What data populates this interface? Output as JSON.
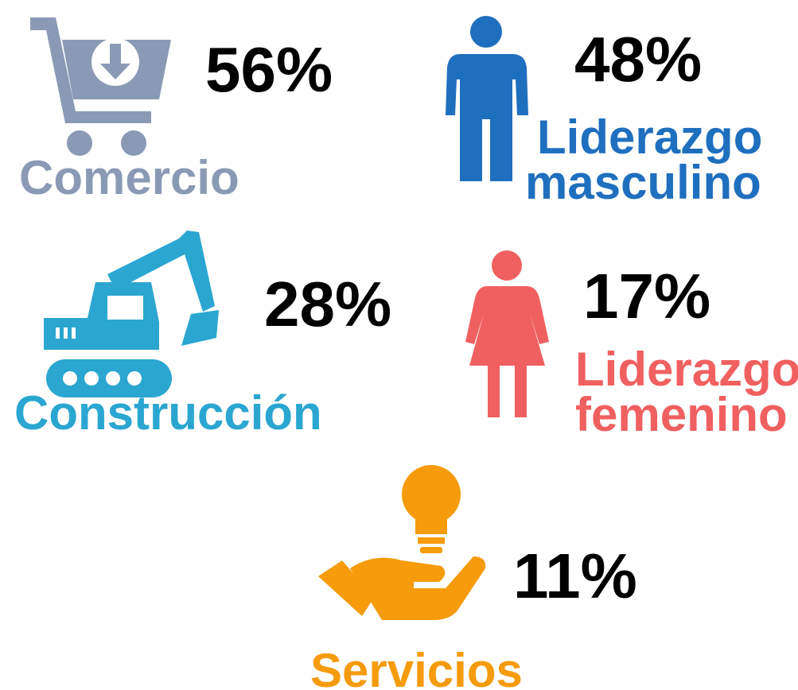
{
  "items": [
    {
      "label": "Comercio",
      "value": "56%"
    },
    {
      "label": "Construcción",
      "value": "28%"
    },
    {
      "label": "Servicios",
      "value": "11%"
    }
  ],
  "leadership": [
    {
      "label_lines": [
        "Liderazgo",
        "masculino"
      ],
      "value": "48%"
    },
    {
      "label_lines": [
        "Liderazgo",
        "femenino"
      ],
      "value": "17%"
    }
  ]
}
